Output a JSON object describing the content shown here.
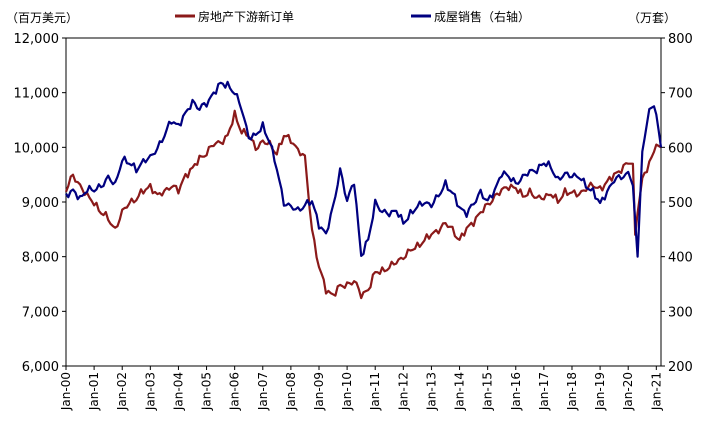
{
  "chart_data": {
    "type": "line",
    "left_unit_label": "（百万美元）",
    "right_unit_label": "（万套）",
    "y_left": {
      "min": 6000,
      "max": 12000,
      "ticks": [
        "6,000",
        "7,000",
        "8,000",
        "9,000",
        "10,000",
        "11,000",
        "12,000"
      ]
    },
    "y_right": {
      "min": 200,
      "max": 800,
      "ticks": [
        "200",
        "300",
        "400",
        "500",
        "600",
        "700",
        "800"
      ]
    },
    "x": {
      "start": "2000-01",
      "end": "2021-03",
      "tick_labels": [
        "Jan-00",
        "Jan-01",
        "Jan-02",
        "Jan-03",
        "Jan-04",
        "Jan-05",
        "Jan-06",
        "Jan-07",
        "Jan-08",
        "Jan-09",
        "Jan-10",
        "Jan-11",
        "Jan-12",
        "Jan-13",
        "Jan-14",
        "Jan-15",
        "Jan-16",
        "Jan-17",
        "Jan-18",
        "Jan-19",
        "Jan-20",
        "Jan-21"
      ]
    },
    "legend_position": "top",
    "series": [
      {
        "name": "房地产下游新订单",
        "axis": "left",
        "color": "#8b1a1a",
        "points": [
          [
            "2000-01",
            9200
          ],
          [
            "2000-04",
            9500
          ],
          [
            "2000-07",
            9300
          ],
          [
            "2000-10",
            9100
          ],
          [
            "2001-01",
            9000
          ],
          [
            "2001-04",
            8800
          ],
          [
            "2001-07",
            8700
          ],
          [
            "2001-10",
            8500
          ],
          [
            "2002-01",
            8800
          ],
          [
            "2002-04",
            9000
          ],
          [
            "2002-07",
            9050
          ],
          [
            "2002-10",
            9200
          ],
          [
            "2003-01",
            9300
          ],
          [
            "2003-04",
            9100
          ],
          [
            "2003-07",
            9200
          ],
          [
            "2003-10",
            9300
          ],
          [
            "2004-01",
            9200
          ],
          [
            "2004-04",
            9500
          ],
          [
            "2004-07",
            9600
          ],
          [
            "2004-10",
            9800
          ],
          [
            "2005-01",
            9900
          ],
          [
            "2005-04",
            10050
          ],
          [
            "2005-07",
            10100
          ],
          [
            "2005-10",
            10200
          ],
          [
            "2006-01",
            10600
          ],
          [
            "2006-04",
            10300
          ],
          [
            "2006-07",
            10200
          ],
          [
            "2006-10",
            10000
          ],
          [
            "2007-01",
            10100
          ],
          [
            "2007-04",
            10050
          ],
          [
            "2007-07",
            9900
          ],
          [
            "2007-10",
            10200
          ],
          [
            "2008-01",
            10150
          ],
          [
            "2008-04",
            9950
          ],
          [
            "2008-07",
            9800
          ],
          [
            "2008-10",
            8500
          ],
          [
            "2009-01",
            7800
          ],
          [
            "2009-04",
            7400
          ],
          [
            "2009-07",
            7300
          ],
          [
            "2009-10",
            7450
          ],
          [
            "2010-01",
            7500
          ],
          [
            "2010-04",
            7550
          ],
          [
            "2010-07",
            7300
          ],
          [
            "2010-10",
            7400
          ],
          [
            "2011-01",
            7700
          ],
          [
            "2011-04",
            7750
          ],
          [
            "2011-07",
            7800
          ],
          [
            "2011-10",
            7900
          ],
          [
            "2012-01",
            8000
          ],
          [
            "2012-04",
            8100
          ],
          [
            "2012-07",
            8200
          ],
          [
            "2012-10",
            8300
          ],
          [
            "2013-01",
            8400
          ],
          [
            "2013-04",
            8500
          ],
          [
            "2013-07",
            8600
          ],
          [
            "2013-10",
            8500
          ],
          [
            "2014-01",
            8300
          ],
          [
            "2014-04",
            8500
          ],
          [
            "2014-07",
            8650
          ],
          [
            "2014-10",
            8800
          ],
          [
            "2015-01",
            8950
          ],
          [
            "2015-04",
            9100
          ],
          [
            "2015-07",
            9200
          ],
          [
            "2015-10",
            9300
          ],
          [
            "2016-01",
            9250
          ],
          [
            "2016-04",
            9100
          ],
          [
            "2016-07",
            9200
          ],
          [
            "2016-10",
            9050
          ],
          [
            "2017-01",
            9100
          ],
          [
            "2017-04",
            9150
          ],
          [
            "2017-07",
            9000
          ],
          [
            "2017-10",
            9200
          ],
          [
            "2018-01",
            9150
          ],
          [
            "2018-04",
            9150
          ],
          [
            "2018-07",
            9250
          ],
          [
            "2018-10",
            9300
          ],
          [
            "2019-01",
            9250
          ],
          [
            "2019-04",
            9350
          ],
          [
            "2019-07",
            9500
          ],
          [
            "2019-10",
            9600
          ],
          [
            "2020-01",
            9700
          ],
          [
            "2020-03",
            9700
          ],
          [
            "2020-04",
            8400
          ],
          [
            "2020-05",
            8800
          ],
          [
            "2020-07",
            9400
          ],
          [
            "2020-10",
            9700
          ],
          [
            "2021-01",
            10050
          ],
          [
            "2021-03",
            10000
          ]
        ]
      },
      {
        "name": "成屋销售（右轴）",
        "axis": "right",
        "color": "#000080",
        "points": [
          [
            "2000-01",
            515
          ],
          [
            "2000-04",
            520
          ],
          [
            "2000-07",
            505
          ],
          [
            "2000-10",
            525
          ],
          [
            "2001-01",
            520
          ],
          [
            "2001-04",
            530
          ],
          [
            "2001-07",
            545
          ],
          [
            "2001-10",
            530
          ],
          [
            "2002-01",
            580
          ],
          [
            "2002-04",
            570
          ],
          [
            "2002-07",
            560
          ],
          [
            "2002-10",
            575
          ],
          [
            "2003-01",
            580
          ],
          [
            "2003-04",
            600
          ],
          [
            "2003-07",
            620
          ],
          [
            "2003-10",
            650
          ],
          [
            "2004-01",
            640
          ],
          [
            "2004-04",
            660
          ],
          [
            "2004-07",
            685
          ],
          [
            "2004-10",
            670
          ],
          [
            "2005-01",
            680
          ],
          [
            "2005-04",
            700
          ],
          [
            "2005-07",
            715
          ],
          [
            "2005-10",
            715
          ],
          [
            "2006-01",
            700
          ],
          [
            "2006-04",
            670
          ],
          [
            "2006-07",
            620
          ],
          [
            "2006-10",
            620
          ],
          [
            "2007-01",
            640
          ],
          [
            "2007-04",
            610
          ],
          [
            "2007-07",
            560
          ],
          [
            "2007-10",
            500
          ],
          [
            "2008-01",
            490
          ],
          [
            "2008-04",
            485
          ],
          [
            "2008-07",
            495
          ],
          [
            "2008-10",
            500
          ],
          [
            "2009-01",
            460
          ],
          [
            "2009-04",
            440
          ],
          [
            "2009-07",
            490
          ],
          [
            "2009-10",
            560
          ],
          [
            "2010-01",
            500
          ],
          [
            "2010-04",
            540
          ],
          [
            "2010-07",
            400
          ],
          [
            "2010-10",
            430
          ],
          [
            "2011-01",
            500
          ],
          [
            "2011-04",
            480
          ],
          [
            "2011-07",
            480
          ],
          [
            "2011-10",
            485
          ],
          [
            "2012-01",
            460
          ],
          [
            "2012-04",
            480
          ],
          [
            "2012-07",
            490
          ],
          [
            "2012-10",
            500
          ],
          [
            "2013-01",
            495
          ],
          [
            "2013-04",
            510
          ],
          [
            "2013-07",
            535
          ],
          [
            "2013-10",
            515
          ],
          [
            "2014-01",
            490
          ],
          [
            "2014-04",
            480
          ],
          [
            "2014-07",
            495
          ],
          [
            "2014-10",
            520
          ],
          [
            "2015-01",
            500
          ],
          [
            "2015-04",
            520
          ],
          [
            "2015-07",
            555
          ],
          [
            "2015-10",
            545
          ],
          [
            "2016-01",
            535
          ],
          [
            "2016-04",
            545
          ],
          [
            "2016-07",
            555
          ],
          [
            "2016-10",
            560
          ],
          [
            "2017-01",
            570
          ],
          [
            "2017-04",
            565
          ],
          [
            "2017-07",
            540
          ],
          [
            "2017-10",
            550
          ],
          [
            "2018-01",
            550
          ],
          [
            "2018-04",
            545
          ],
          [
            "2018-07",
            530
          ],
          [
            "2018-10",
            520
          ],
          [
            "2019-01",
            495
          ],
          [
            "2019-04",
            520
          ],
          [
            "2019-07",
            540
          ],
          [
            "2019-10",
            545
          ],
          [
            "2020-01",
            555
          ],
          [
            "2020-03",
            530
          ],
          [
            "2020-05",
            400
          ],
          [
            "2020-07",
            590
          ],
          [
            "2020-10",
            670
          ],
          [
            "2020-12",
            675
          ],
          [
            "2021-01",
            660
          ],
          [
            "2021-03",
            600
          ]
        ]
      }
    ]
  }
}
